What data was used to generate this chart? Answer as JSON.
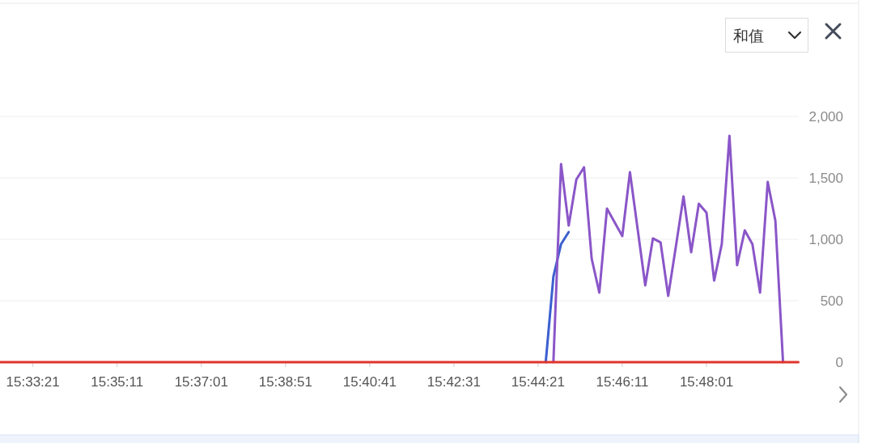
{
  "chart_data": {
    "type": "line",
    "annotations": [
      "和值"
    ],
    "xlim": [
      15.543889,
      15.833611
    ],
    "xticks": [
      {
        "value": 15.555833,
        "label": "15:33:21"
      },
      {
        "value": 15.586389,
        "label": "15:35:11"
      },
      {
        "value": 15.616944,
        "label": "15:37:01"
      },
      {
        "value": 15.6475,
        "label": "15:38:51"
      },
      {
        "value": 15.678056,
        "label": "15:40:41"
      },
      {
        "value": 15.708611,
        "label": "15:42:31"
      },
      {
        "value": 15.739167,
        "label": "15:44:21"
      },
      {
        "value": 15.769722,
        "label": "15:46:11"
      },
      {
        "value": 15.800278,
        "label": "15:48:01"
      }
    ],
    "ylim": [
      0,
      2000
    ],
    "yticks": [
      0,
      500,
      {
        "value": 1000,
        "label": "1,000"
      },
      {
        "value": 1500,
        "label": "1,500"
      },
      {
        "value": 2000,
        "label": "2,000"
      }
    ],
    "grid": "y",
    "series": [
      {
        "color": "#3b5fd0",
        "x": [
          15.741944,
          15.744722,
          15.7475,
          15.750278
        ],
        "values": [
          0,
          697,
          961,
          1059
        ]
      },
      {
        "color": "#8a56c8",
        "x": [
          15.744722,
          15.7475,
          15.750278,
          15.753056,
          15.755833,
          15.758611,
          15.761389,
          15.764167,
          15.766944,
          15.769722,
          15.7725,
          15.775278,
          15.778056,
          15.780833,
          15.783611,
          15.786389,
          15.789167,
          15.791944,
          15.794722,
          15.7975,
          15.800278,
          15.803056,
          15.805833,
          15.808611,
          15.811389,
          15.814167,
          15.816944,
          15.819722,
          15.8225,
          15.825278,
          15.828056
        ],
        "values": [
          0,
          1612,
          1112,
          1487,
          1586,
          842,
          566,
          1250,
          1138,
          1026,
          1546,
          1086,
          625,
          1007,
          974,
          539,
          941,
          1349,
          895,
          1289,
          1217,
          664,
          961,
          1842,
          789,
          1072,
          961,
          566,
          1467,
          1151,
          0
        ]
      },
      {
        "color": "#e0352b",
        "x": [
          15.543889,
          15.833611
        ],
        "values": [
          0,
          0
        ]
      }
    ]
  }
}
